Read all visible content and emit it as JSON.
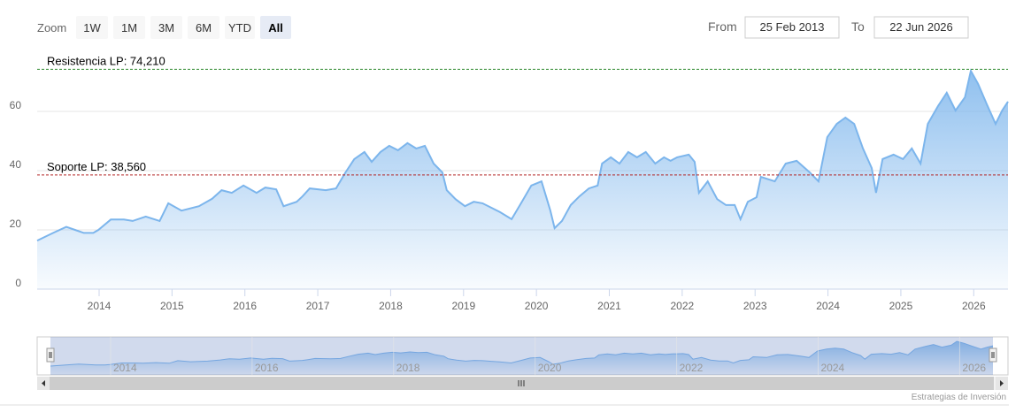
{
  "range_selector": {
    "label": "Zoom",
    "buttons": [
      "1W",
      "1M",
      "3M",
      "6M",
      "YTD",
      "All"
    ],
    "selected": 5,
    "from_label": "From",
    "from": "25 Feb 2013",
    "to_label": "To",
    "to": "22 Jun 2026"
  },
  "chart_data": {
    "type": "area",
    "x": [
      2013.15,
      2013.37,
      2013.55,
      2013.67,
      2013.79,
      2013.92,
      2013.99,
      2014.16,
      2014.34,
      2014.46,
      2014.64,
      2014.83,
      2014.95,
      2015.13,
      2015.37,
      2015.55,
      2015.68,
      2015.82,
      2015.98,
      2016.16,
      2016.28,
      2016.43,
      2016.53,
      2016.71,
      2016.79,
      2016.89,
      2017.11,
      2017.25,
      2017.38,
      2017.5,
      2017.64,
      2017.74,
      2017.86,
      2017.98,
      2018.1,
      2018.23,
      2018.35,
      2018.47,
      2018.59,
      2018.71,
      2018.77,
      2018.89,
      2019.02,
      2019.14,
      2019.26,
      2019.38,
      2019.5,
      2019.66,
      2019.8,
      2019.93,
      2020.07,
      2020.19,
      2020.25,
      2020.35,
      2020.47,
      2020.59,
      2020.72,
      2020.84,
      2020.9,
      2021.02,
      2021.14,
      2021.26,
      2021.38,
      2021.5,
      2021.63,
      2021.75,
      2021.84,
      2021.93,
      2022.09,
      2022.17,
      2022.23,
      2022.35,
      2022.48,
      2022.6,
      2022.72,
      2022.8,
      2022.9,
      2023.02,
      2023.08,
      2023.27,
      2023.42,
      2023.57,
      2023.75,
      2023.87,
      2023.99,
      2024.12,
      2024.24,
      2024.36,
      2024.48,
      2024.6,
      2024.66,
      2024.75,
      2024.9,
      2025.03,
      2025.15,
      2025.27,
      2025.37,
      2025.51,
      2025.63,
      2025.75,
      2025.88,
      2025.96,
      2026.06,
      2026.18,
      2026.3,
      2026.39,
      2026.47
    ],
    "series": [
      {
        "color": "#7cb5ec",
        "values": [
          16.4,
          19,
          21,
          20,
          19,
          19,
          20,
          23.5,
          23.5,
          23,
          24.5,
          23,
          29,
          26.5,
          28,
          30.5,
          33.4,
          32.5,
          35,
          32.5,
          34.3,
          33.7,
          28,
          29.5,
          31.3,
          34,
          33.4,
          34,
          39.4,
          43.9,
          46.3,
          43,
          46.3,
          48.4,
          46.9,
          49.3,
          47.5,
          48.4,
          42.4,
          39.4,
          33.4,
          30.4,
          28,
          29.5,
          29,
          27.5,
          26,
          23.6,
          29.5,
          35,
          36.4,
          26.6,
          20.6,
          23,
          28.4,
          31.3,
          34,
          35,
          42.4,
          44.5,
          42.4,
          46.3,
          44.5,
          46.3,
          42.4,
          44.5,
          43.3,
          44.5,
          45.4,
          43,
          32.5,
          36.4,
          30.4,
          28.4,
          28.4,
          23.6,
          29.5,
          31,
          37.9,
          36.4,
          42.4,
          43.3,
          39.4,
          36.4,
          51.3,
          55.8,
          57.9,
          55.8,
          47.5,
          40.9,
          32.5,
          43.9,
          45.4,
          43.9,
          47.5,
          42.4,
          55.8,
          61.8,
          66.3,
          60.3,
          64.8,
          73.7,
          69.3,
          62.4,
          55.8,
          60.3,
          63.3
        ]
      }
    ],
    "xlim": [
      2013.15,
      2026.47
    ],
    "ylim": [
      0,
      80
    ],
    "xticks": [
      2014,
      2015,
      2016,
      2017,
      2018,
      2019,
      2020,
      2021,
      2022,
      2023,
      2024,
      2025,
      2026
    ],
    "yticks": [
      0,
      20,
      40,
      60
    ],
    "grid": true,
    "plot_lines": [
      {
        "value": 74.21,
        "label": "Resistencia LP: 74,210",
        "color": "#2e8b2e"
      },
      {
        "value": 38.56,
        "label": "Soporte LP: 38,560",
        "color": "#b22222"
      }
    ]
  },
  "navigator": {
    "xticks": [
      2014,
      2016,
      2018,
      2020,
      2022,
      2024,
      2026
    ]
  },
  "credits": "Estrategias de Inversión"
}
